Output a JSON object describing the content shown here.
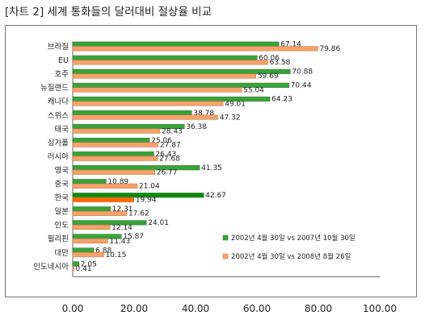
{
  "chart_data": {
    "type": "bar",
    "orientation": "horizontal",
    "title": "[차트 2] 세계 통화들의 달러대비 절상율 비교",
    "categories": [
      "브라질",
      "EU",
      "호주",
      "뉴질랜드",
      "캐나다",
      "스위스",
      "태국",
      "싱가폴",
      "러시아",
      "영국",
      "중국",
      "한국",
      "일본",
      "인도",
      "필리핀",
      "대만",
      "인도네시아"
    ],
    "series": [
      {
        "name": "2002년 4월 30일 vs 2007년 10월 30일",
        "color": "#3aa23a",
        "values": [
          67.14,
          60.06,
          70.88,
          70.44,
          64.23,
          38.78,
          36.38,
          25.06,
          26.43,
          41.35,
          10.89,
          42.67,
          12.31,
          24.01,
          15.87,
          6.88,
          2.05
        ]
      },
      {
        "name": "2002년 4월 30일 vs 2008년 8월 26일",
        "color": "#f5a26a",
        "values": [
          79.86,
          63.58,
          59.69,
          55.04,
          49.01,
          47.32,
          28.43,
          27.87,
          27.68,
          26.77,
          21.04,
          19.94,
          17.62,
          12.14,
          11.43,
          10.15,
          0.41
        ]
      }
    ],
    "value_labels": {
      "series_0": [
        "67.14",
        "60.06",
        "70.88",
        "70.44",
        "64.23",
        "38.78",
        "36.38",
        "25.06",
        "26.43",
        "41.35",
        "10.89",
        "42.67",
        "12.31",
        "24.01",
        "15.87",
        "6.88",
        "2.05"
      ],
      "series_1": [
        "79.86",
        "63.58",
        "59.69",
        "55.04",
        "49.01",
        "47.32",
        "28.43",
        "27.87",
        "27.68",
        "26.77",
        "21.04",
        "19.94",
        "17.62",
        "12.14",
        "11.43",
        "10.15",
        "0.41"
      ]
    },
    "highlight": {
      "category": "한국",
      "colors": [
        "#0f8a0f",
        "#ff6a00"
      ]
    },
    "xlim": [
      0,
      100
    ],
    "xticks": [
      "0.00",
      "20.00",
      "40.00",
      "60.00",
      "80.00",
      "100.00"
    ],
    "grid": false,
    "legend_position": "right"
  }
}
